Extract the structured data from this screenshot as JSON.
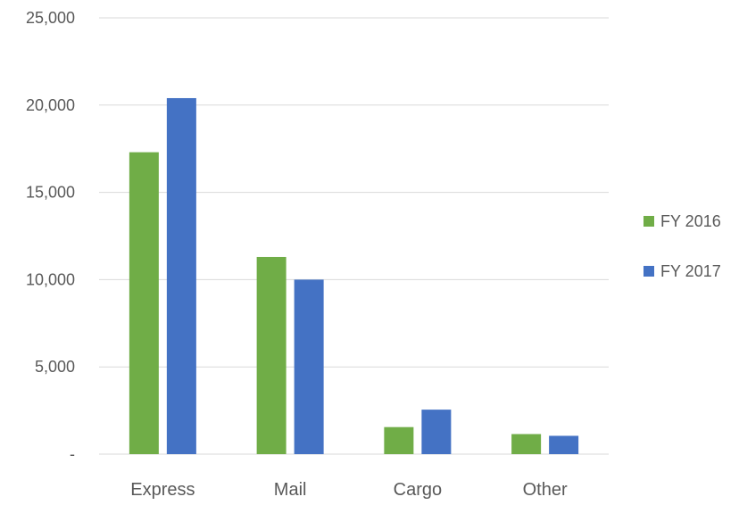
{
  "chart_data": {
    "type": "bar",
    "categories": [
      "Express",
      "Mail",
      "Cargo",
      "Other"
    ],
    "series": [
      {
        "name": "FY 2016",
        "color": "#70ad47",
        "values": [
          17300,
          11300,
          1550,
          1150
        ]
      },
      {
        "name": "FY 2017",
        "color": "#4472c4",
        "values": [
          20400,
          10000,
          2550,
          1050
        ]
      }
    ],
    "ylim": [
      0,
      25000
    ],
    "yticks": [
      {
        "value": 0,
        "label": "-"
      },
      {
        "value": 5000,
        "label": "5,000"
      },
      {
        "value": 10000,
        "label": "10,000"
      },
      {
        "value": 15000,
        "label": "15,000"
      },
      {
        "value": 20000,
        "label": "20,000"
      },
      {
        "value": 25000,
        "label": "25,000"
      }
    ],
    "grid": true,
    "legend_position": "right"
  }
}
